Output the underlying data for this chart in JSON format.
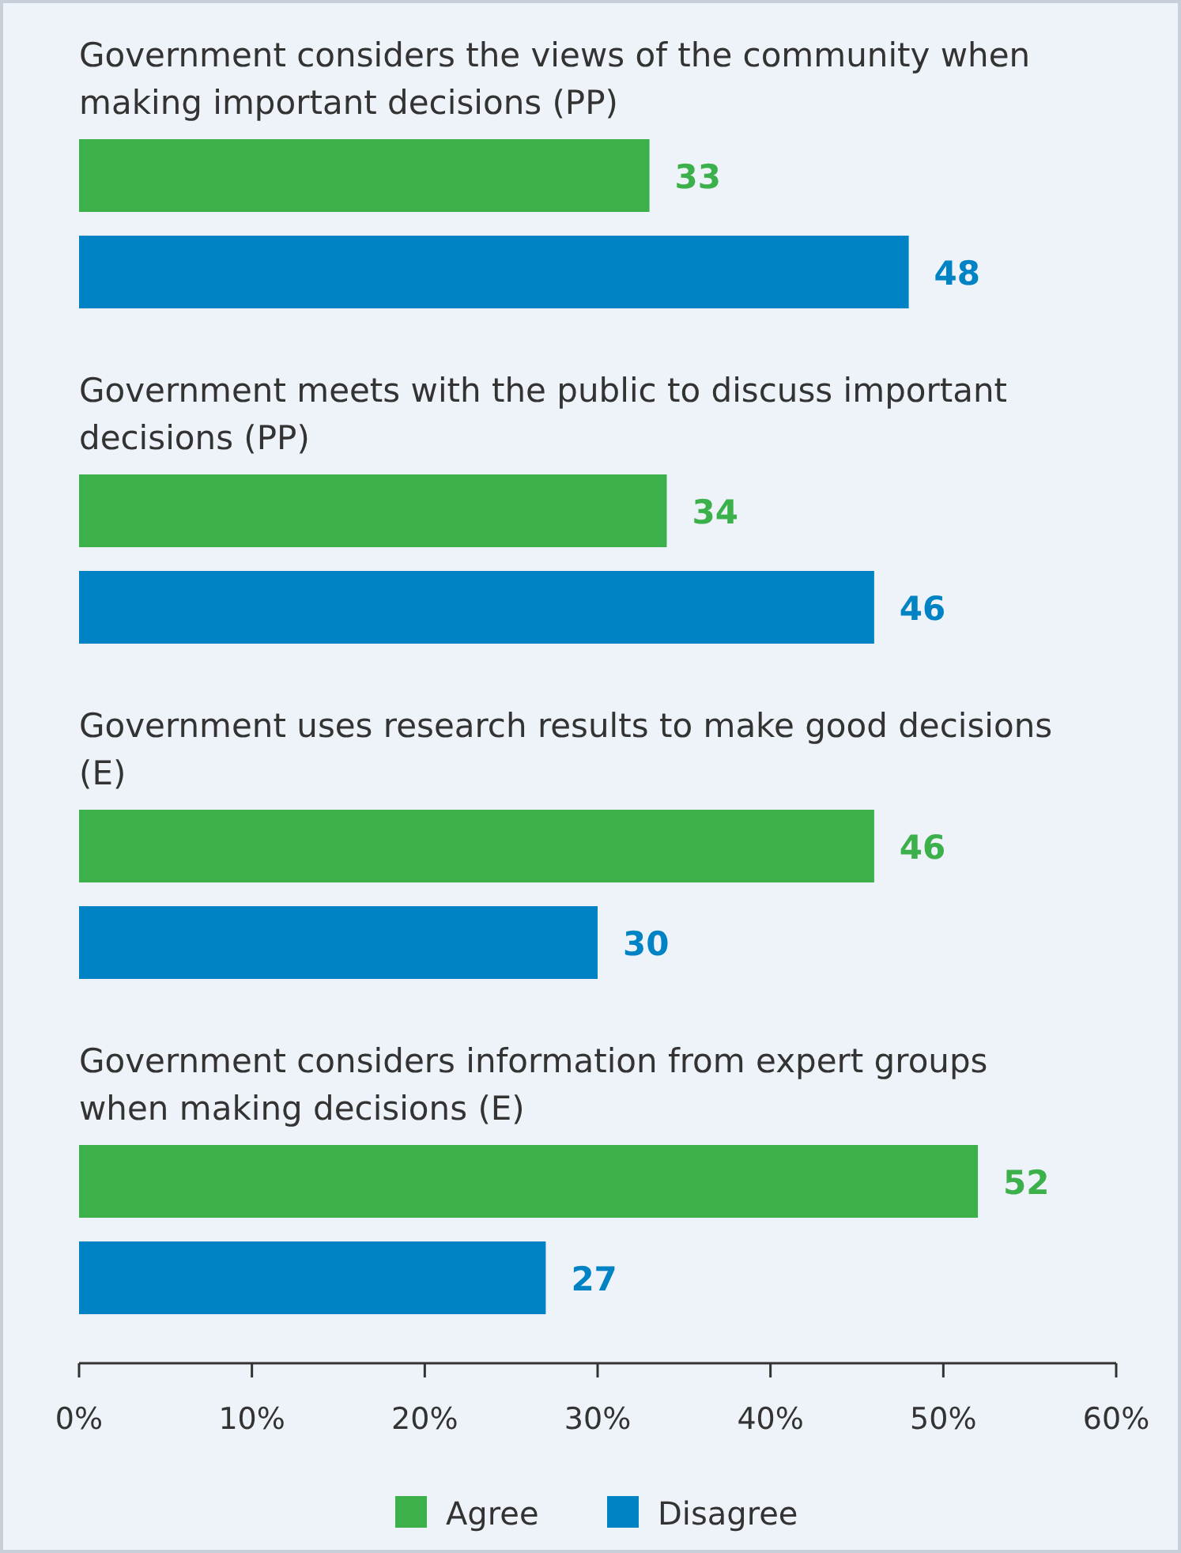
{
  "chart_data": {
    "type": "bar",
    "orientation": "horizontal",
    "categories": [
      "Government considers the views of the community when making important decisions (PP)",
      "Government meets with the public to discuss important decisions (PP)",
      "Government uses research results to make good decisions (E)",
      "Government considers information from expert groups when making decisions (E)"
    ],
    "series": [
      {
        "name": "Agree",
        "color": "#3cb04a",
        "values": [
          33,
          34,
          46,
          52
        ]
      },
      {
        "name": "Disagree",
        "color": "#0083c5",
        "values": [
          48,
          46,
          30,
          27
        ]
      }
    ],
    "xlim": [
      0,
      60
    ],
    "xticks": [
      {
        "value": 0,
        "label": "0%"
      },
      {
        "value": 10,
        "label": "10%"
      },
      {
        "value": 20,
        "label": "20%"
      },
      {
        "value": 30,
        "label": "30%"
      },
      {
        "value": 40,
        "label": "40%"
      },
      {
        "value": 50,
        "label": "50%"
      },
      {
        "value": 60,
        "label": "60%"
      }
    ],
    "data_labels": true,
    "legend": "bottom",
    "grid": false
  }
}
